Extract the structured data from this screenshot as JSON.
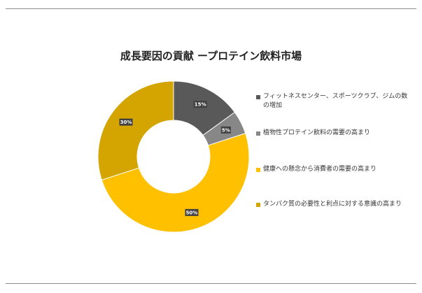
{
  "chart_data": {
    "type": "pie",
    "title": "成長要因の貢献 ープロテイン飲料市場",
    "categories": [
      "フィットネスセンター、スポーツクラブ、ジムの数の増加",
      "植物性プロテイン飲料の需要の高まり",
      "健康への懸念から消費者の需要の高まり",
      "タンパク質の必要性と利点に対する意識の高まり"
    ],
    "values": [
      15,
      5,
      50,
      30
    ],
    "data_labels": [
      "15%",
      "5%",
      "50%",
      "30%"
    ],
    "colors": [
      "#595959",
      "#878787",
      "#ffc000",
      "#d4a400"
    ],
    "legend_position": "right",
    "donut": true
  }
}
